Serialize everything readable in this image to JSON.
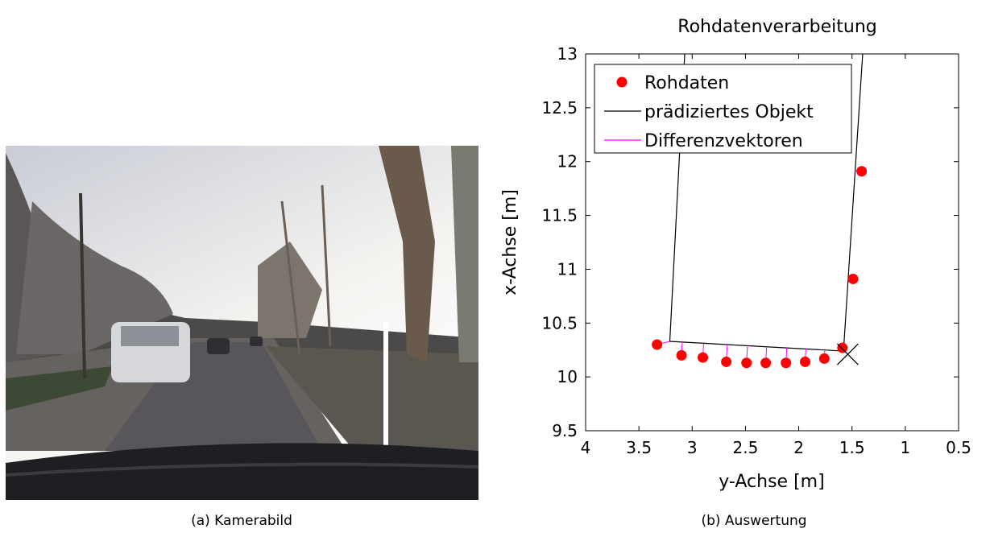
{
  "captions": [
    "(a)  Kamerabild",
    "(b)  Auswertung"
  ],
  "chart_data": {
    "type": "scatter",
    "title": "Rohdatenverarbeitung",
    "x_label": "y-Achse [m]",
    "y_label": "x-Achse [m]",
    "xlim": [
      4,
      0.5
    ],
    "xticks": [
      4,
      3.5,
      3,
      2.5,
      2,
      1.5,
      1,
      0.5
    ],
    "ylim": [
      9.5,
      13
    ],
    "yticks": [
      9.5,
      10,
      10.5,
      11,
      11.5,
      12,
      12.5,
      13
    ],
    "legend": "top-left",
    "series": [
      {
        "name": "Rohdaten",
        "type": "scatter",
        "color": "#ff0000",
        "x": [
          3.33,
          3.1,
          2.9,
          2.68,
          2.49,
          2.31,
          2.12,
          1.94,
          1.76,
          1.59,
          1.49,
          1.41
        ],
        "values": [
          10.3,
          10.2,
          10.18,
          10.14,
          10.13,
          10.13,
          10.13,
          10.14,
          10.17,
          10.27,
          10.91,
          11.91
        ]
      },
      {
        "name": "prädiziertes Objekt",
        "type": "line",
        "color": "#000000",
        "x": [
          3.07,
          3.21,
          1.58,
          1.4
        ],
        "values": [
          13,
          10.33,
          10.24,
          13
        ]
      },
      {
        "name": "Differenzvektoren",
        "type": "vectors",
        "color": "#ff00ff"
      }
    ],
    "object_reference": {
      "x": 1.54,
      "y": 10.21
    }
  }
}
